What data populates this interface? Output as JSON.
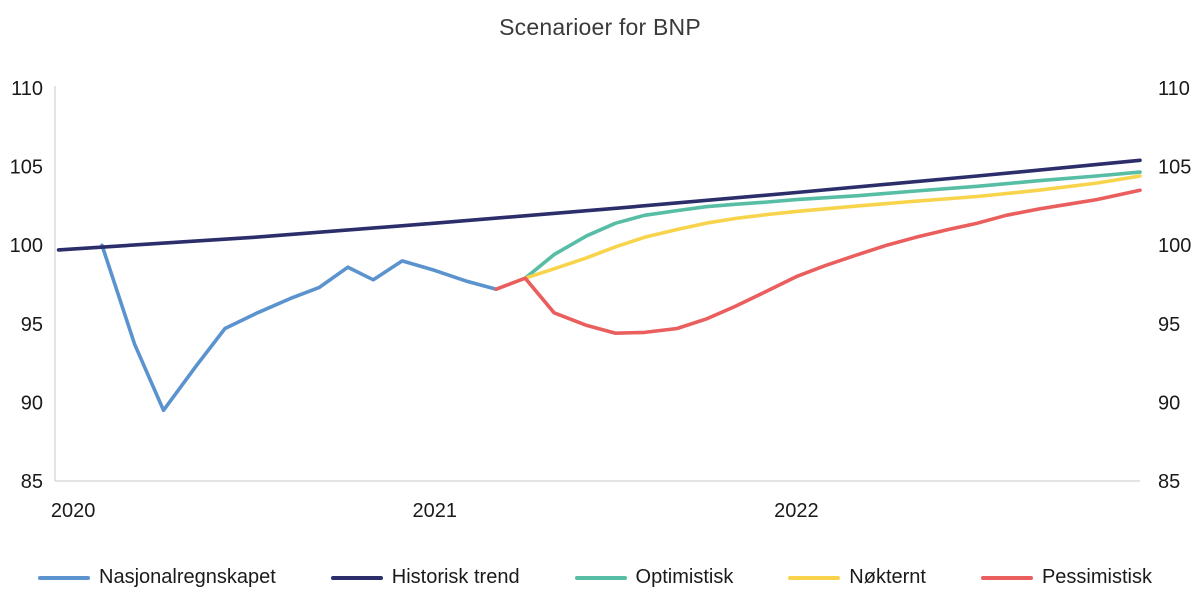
{
  "chart_data": {
    "type": "line",
    "title": "Scenarioer for BNP",
    "xlabel": "",
    "ylabel": "",
    "x_range": [
      2019.95,
      2022.95
    ],
    "y_range": [
      85,
      110
    ],
    "y_ticks": [
      85,
      90,
      95,
      100,
      105,
      110
    ],
    "x_ticks": [
      {
        "value": 2020,
        "label": "2020"
      },
      {
        "value": 2021,
        "label": "2021"
      },
      {
        "value": 2022,
        "label": "2022"
      }
    ],
    "grid": false,
    "legend_position": "bottom",
    "axis_color": "#c8c8c8",
    "series": [
      {
        "name": "Nasjonalregnskapet",
        "color": "#5b93ce",
        "points": [
          [
            2020.08,
            100.0
          ],
          [
            2020.17,
            93.7
          ],
          [
            2020.25,
            89.5
          ],
          [
            2020.34,
            92.3
          ],
          [
            2020.42,
            94.7
          ],
          [
            2020.51,
            95.7
          ],
          [
            2020.6,
            96.6
          ],
          [
            2020.68,
            97.3
          ],
          [
            2020.76,
            98.6
          ],
          [
            2020.83,
            97.8
          ],
          [
            2020.91,
            99.0
          ],
          [
            2021.0,
            98.4
          ],
          [
            2021.09,
            97.7
          ],
          [
            2021.17,
            97.2
          ]
        ]
      },
      {
        "name": "Historisk trend",
        "color": "#2b2e6a",
        "points": [
          [
            2019.96,
            99.7
          ],
          [
            2020.5,
            100.5
          ],
          [
            2021.0,
            101.4
          ],
          [
            2021.5,
            102.35
          ],
          [
            2022.0,
            103.35
          ],
          [
            2022.5,
            104.4
          ],
          [
            2022.95,
            105.4
          ]
        ]
      },
      {
        "name": "Optimistisk",
        "color": "#57bda4",
        "points": [
          [
            2021.25,
            97.9
          ],
          [
            2021.33,
            99.4
          ],
          [
            2021.42,
            100.6
          ],
          [
            2021.5,
            101.4
          ],
          [
            2021.58,
            101.9
          ],
          [
            2021.67,
            102.2
          ],
          [
            2021.75,
            102.45
          ],
          [
            2021.83,
            102.6
          ],
          [
            2021.92,
            102.75
          ],
          [
            2022.0,
            102.9
          ],
          [
            2022.17,
            103.15
          ],
          [
            2022.33,
            103.45
          ],
          [
            2022.5,
            103.75
          ],
          [
            2022.67,
            104.1
          ],
          [
            2022.83,
            104.4
          ],
          [
            2022.95,
            104.65
          ]
        ]
      },
      {
        "name": "Nøkternt",
        "color": "#f8d44d",
        "points": [
          [
            2021.25,
            97.9
          ],
          [
            2021.33,
            98.5
          ],
          [
            2021.42,
            99.2
          ],
          [
            2021.5,
            99.9
          ],
          [
            2021.58,
            100.5
          ],
          [
            2021.67,
            101.0
          ],
          [
            2021.75,
            101.4
          ],
          [
            2021.83,
            101.7
          ],
          [
            2021.92,
            101.95
          ],
          [
            2022.0,
            102.15
          ],
          [
            2022.17,
            102.5
          ],
          [
            2022.33,
            102.8
          ],
          [
            2022.5,
            103.1
          ],
          [
            2022.67,
            103.5
          ],
          [
            2022.83,
            103.95
          ],
          [
            2022.95,
            104.4
          ]
        ]
      },
      {
        "name": "Pessimistisk",
        "color": "#eb5e5e",
        "points": [
          [
            2021.17,
            97.2
          ],
          [
            2021.25,
            97.9
          ],
          [
            2021.33,
            95.7
          ],
          [
            2021.42,
            94.9
          ],
          [
            2021.5,
            94.4
          ],
          [
            2021.58,
            94.45
          ],
          [
            2021.67,
            94.7
          ],
          [
            2021.75,
            95.3
          ],
          [
            2021.83,
            96.1
          ],
          [
            2021.92,
            97.1
          ],
          [
            2022.0,
            98.0
          ],
          [
            2022.08,
            98.7
          ],
          [
            2022.17,
            99.4
          ],
          [
            2022.25,
            100.0
          ],
          [
            2022.33,
            100.5
          ],
          [
            2022.42,
            101.0
          ],
          [
            2022.5,
            101.4
          ],
          [
            2022.58,
            101.9
          ],
          [
            2022.67,
            102.3
          ],
          [
            2022.75,
            102.6
          ],
          [
            2022.83,
            102.9
          ],
          [
            2022.95,
            103.5
          ]
        ]
      }
    ]
  }
}
